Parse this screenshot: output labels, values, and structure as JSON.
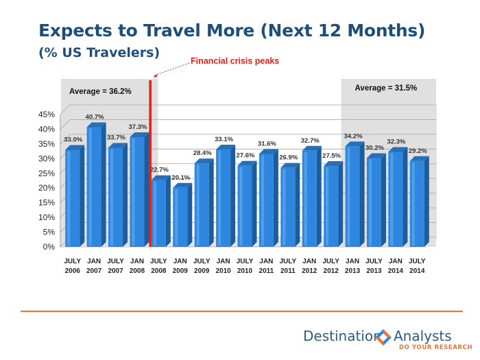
{
  "slide": {
    "title": "Expects to Travel More (Next 12 Months)",
    "subtitle": "(% US Travelers)"
  },
  "chart_data": {
    "type": "bar",
    "categories": [
      [
        "JULY",
        "2006"
      ],
      [
        "JAN",
        "2007"
      ],
      [
        "JULY",
        "2007"
      ],
      [
        "JAN",
        "2008"
      ],
      [
        "JULY",
        "2008"
      ],
      [
        "JAN",
        "2009"
      ],
      [
        "JULY",
        "2009"
      ],
      [
        "JAN",
        "2010"
      ],
      [
        "JULY",
        "2010"
      ],
      [
        "JAN",
        "2011"
      ],
      [
        "JULY",
        "2011"
      ],
      [
        "JAN",
        "2012"
      ],
      [
        "JULY",
        "2012"
      ],
      [
        "JAN",
        "2013"
      ],
      [
        "JULY",
        "2013"
      ],
      [
        "JAN",
        "2014"
      ],
      [
        "JULY",
        "2014"
      ]
    ],
    "values": [
      33.0,
      40.7,
      33.7,
      37.3,
      22.7,
      20.1,
      28.4,
      33.1,
      27.6,
      31.6,
      26.9,
      32.7,
      27.5,
      34.2,
      30.2,
      32.3,
      29.2
    ],
    "value_labels": [
      "33.0%",
      "40.7%",
      "33.7%",
      "37.3%",
      "22.7%",
      "20.1%",
      "28.4%",
      "33.1%",
      "27.6%",
      "31.6%",
      "26.9%",
      "32.7%",
      "27.5%",
      "34.2%",
      "30.2%",
      "32.3%",
      "29.2%"
    ],
    "ylim": [
      0,
      45
    ],
    "yticks": [
      0,
      5,
      10,
      15,
      20,
      25,
      30,
      35,
      40,
      45
    ],
    "ytick_labels": [
      "0%",
      "5%",
      "10%",
      "15%",
      "20%",
      "25%",
      "30%",
      "35%",
      "40%",
      "45%"
    ],
    "bar_color": "#2e86de",
    "annotations": {
      "crisis_label": "Financial crisis peaks",
      "crisis_between": [
        3,
        4
      ],
      "crisis_color": "#e0201b",
      "avg_left_label": "Average = 36.2%",
      "avg_left_range": [
        0,
        3
      ],
      "avg_right_label": "Average = 31.5%",
      "avg_right_range": [
        13,
        16
      ]
    }
  },
  "footer": {
    "brand_left": "Destination",
    "brand_right": "Analysts",
    "tagline": "DO YOUR RESEARCH",
    "accent": "#e8743b"
  }
}
